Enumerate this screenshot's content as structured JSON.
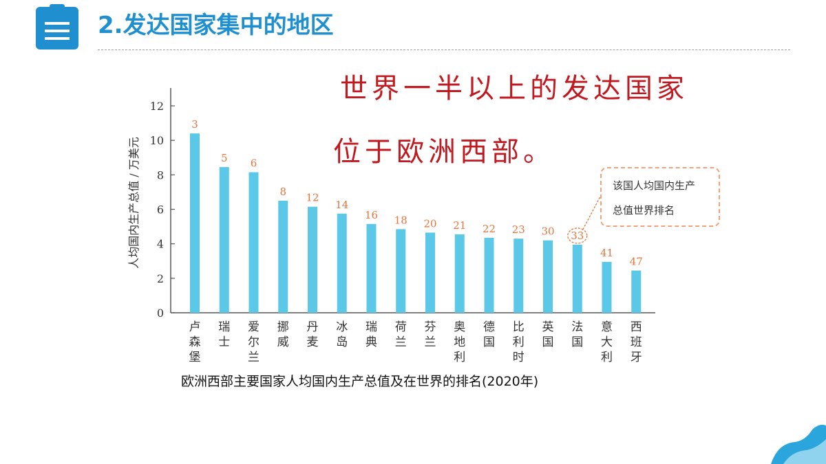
{
  "header": {
    "title": "2.发达国家集中的地区"
  },
  "headline": {
    "line1": "世界一半以上的发达国家",
    "line2": "位于欧洲西部。"
  },
  "callout": {
    "line1": "该国人均国内生产",
    "line2": "总值世界排名"
  },
  "caption": "欧洲西部主要国家人均国内生产总值及在世界的排名(2020年)",
  "colors": {
    "accent": "#1f8fd0",
    "headline": "#c0191f",
    "bar": "#5bc8e8",
    "rank": "#e8743b"
  },
  "chart_data": {
    "type": "bar",
    "ylabel": "人均国内生产总值 / 万美元",
    "ylim": [
      0,
      12
    ],
    "yticks": [
      0,
      2,
      4,
      6,
      8,
      10,
      12
    ],
    "categories": [
      "卢森堡",
      "瑞士",
      "爱尔兰",
      "挪威",
      "丹麦",
      "冰岛",
      "瑞典",
      "荷兰",
      "芬兰",
      "奥地利",
      "德国",
      "比利时",
      "英国",
      "法国",
      "意大利",
      "西班牙"
    ],
    "values": [
      10.4,
      8.45,
      8.15,
      6.5,
      6.15,
      5.75,
      5.15,
      4.85,
      4.65,
      4.55,
      4.35,
      4.3,
      4.2,
      3.95,
      2.95,
      2.45
    ],
    "rank_labels": [
      "3",
      "5",
      "6",
      "8",
      "12",
      "14",
      "16",
      "18",
      "20",
      "21",
      "22",
      "23",
      "30",
      "33",
      "41",
      "47"
    ],
    "highlighted": "33"
  }
}
